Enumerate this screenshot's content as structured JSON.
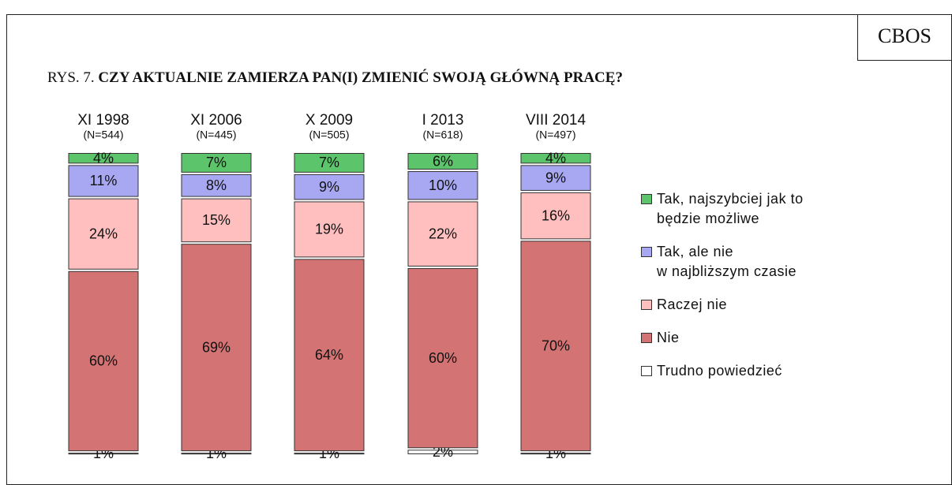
{
  "chart_data": {
    "type": "stacked-bar",
    "brand": "CBOS",
    "title_prefix": "RYS. 7.",
    "title": "CZY AKTUALNIE ZAMIERZA PAN(I) ZMIENIĆ SWOJĄ GŁÓWNĄ PRACĘ?",
    "categories": [
      "XI 1998",
      "XI 2006",
      "X 2009",
      "I 2013",
      "VIII 2014"
    ],
    "sample_sizes": [
      "(N=544)",
      "(N=445)",
      "(N=505)",
      "(N=618)",
      "(N=497)"
    ],
    "ylim": [
      0,
      100
    ],
    "series": [
      {
        "name": "Trudno powiedzieć",
        "color": "#ffffff",
        "values": [
          1,
          1,
          1,
          2,
          1
        ],
        "value_labels": [
          "1%",
          "1%",
          "1%",
          "2%",
          "1%"
        ]
      },
      {
        "name": "Nie",
        "color": "#d47373",
        "values": [
          60,
          69,
          64,
          60,
          70
        ],
        "value_labels": [
          "60%",
          "69%",
          "64%",
          "60%",
          "70%"
        ]
      },
      {
        "name": "Raczej nie",
        "color": "#ffbfbf",
        "values": [
          24,
          15,
          19,
          22,
          16
        ],
        "value_labels": [
          "24%",
          "15%",
          "19%",
          "22%",
          "16%"
        ]
      },
      {
        "name": "Tak, ale nie\nw najbliższym czasie",
        "color": "#a8a8f2",
        "values": [
          11,
          8,
          9,
          10,
          9
        ],
        "value_labels": [
          "11%",
          "8%",
          "9%",
          "10%",
          "9%"
        ]
      },
      {
        "name": "Tak, najszybciej jak to\nbędzie możliwe",
        "color": "#5cc46a",
        "values": [
          4,
          7,
          7,
          6,
          4
        ],
        "value_labels": [
          "4%",
          "7%",
          "7%",
          "6%",
          "4%"
        ]
      }
    ]
  }
}
